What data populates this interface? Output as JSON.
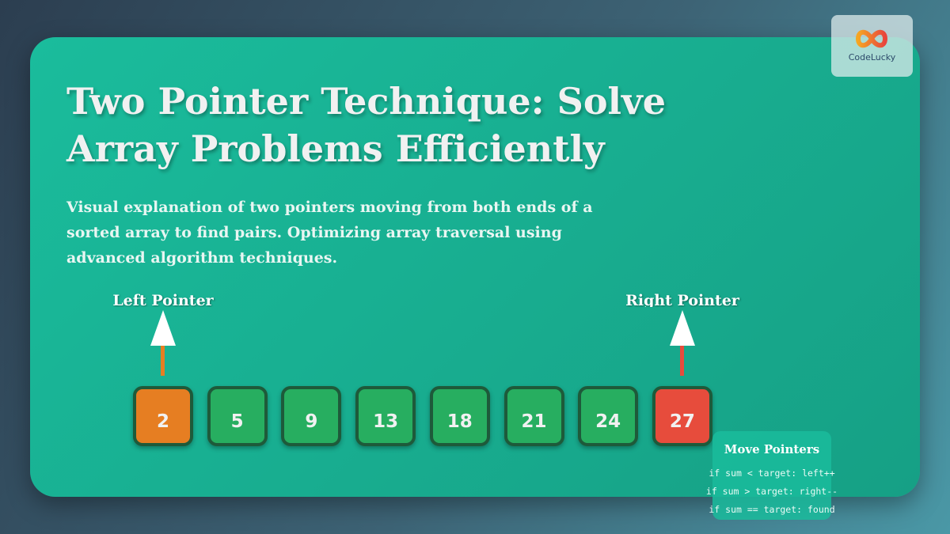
{
  "title": "Two Pointer Technique: Solve Array Problems Efficiently",
  "subtitle": "Visual explanation of two pointers moving from both ends of a sorted array to find pairs. Optimizing array traversal using advanced algorithm techniques.",
  "logo": {
    "text": "CodeLucky",
    "icon": "infinity-icon"
  },
  "pointers": {
    "left": "Left Pointer",
    "right": "Right Pointer"
  },
  "array": [
    {
      "value": "2",
      "color": "#e67e22"
    },
    {
      "value": "5",
      "color": "#27ae60"
    },
    {
      "value": "9",
      "color": "#27ae60"
    },
    {
      "value": "13",
      "color": "#27ae60"
    },
    {
      "value": "18",
      "color": "#27ae60"
    },
    {
      "value": "21",
      "color": "#27ae60"
    },
    {
      "value": "24",
      "color": "#27ae60"
    },
    {
      "value": "27",
      "color": "#e74c3c"
    }
  ],
  "move": {
    "title": "Move Pointers",
    "lines": [
      "if sum < target: left++",
      "if sum > target: right--",
      "if sum == target: found"
    ]
  }
}
